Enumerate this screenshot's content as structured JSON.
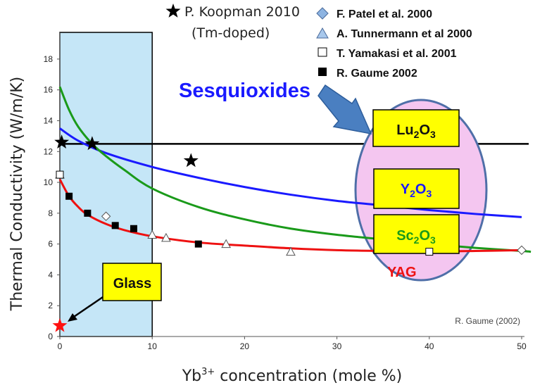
{
  "chart_data": {
    "type": "line",
    "xlabel_base": "Yb",
    "xlabel_sup": "3+",
    "xlabel_rest": " concentration (mole %)",
    "ylabel": "Thermal Conductivity (W/m/K)",
    "xlim": [
      0,
      50
    ],
    "ylim": [
      0,
      19
    ],
    "xticks": [
      0,
      10,
      20,
      30,
      40,
      50
    ],
    "yticks": [
      0,
      2,
      4,
      6,
      8,
      10,
      12,
      14,
      16,
      18
    ],
    "highlight_region": {
      "x_from": 0,
      "x_to": 10,
      "color": "#c5e6f7"
    },
    "horizontal_line": {
      "y": 12.5,
      "color": "#000000"
    },
    "curves": [
      {
        "color": "#1a1aff",
        "label": "",
        "points": [
          [
            0,
            13.5
          ],
          [
            2,
            12.7
          ],
          [
            5,
            11.9
          ],
          [
            10,
            11.0
          ],
          [
            15,
            10.3
          ],
          [
            20,
            9.7
          ],
          [
            25,
            9.2
          ],
          [
            30,
            8.8
          ],
          [
            35,
            8.5
          ],
          [
            40,
            8.2
          ],
          [
            45,
            7.95
          ],
          [
            50,
            7.75
          ]
        ]
      },
      {
        "color": "#1a9a1a",
        "label": "",
        "points": [
          [
            0,
            16.2
          ],
          [
            1,
            14.7
          ],
          [
            2,
            13.6
          ],
          [
            3.5,
            12.5
          ],
          [
            5,
            11.7
          ],
          [
            7,
            10.8
          ],
          [
            10,
            9.6
          ],
          [
            15,
            8.4
          ],
          [
            20,
            7.6
          ],
          [
            25,
            7.0
          ],
          [
            30,
            6.6
          ],
          [
            35,
            6.3
          ],
          [
            40,
            6.0
          ],
          [
            45,
            5.75
          ],
          [
            50,
            5.55
          ],
          [
            51,
            5.5
          ]
        ]
      },
      {
        "color": "#ee1111",
        "label": "YAG",
        "points": [
          [
            0,
            10.2
          ],
          [
            1,
            9.1
          ],
          [
            2,
            8.4
          ],
          [
            3,
            7.9
          ],
          [
            5,
            7.3
          ],
          [
            7,
            6.9
          ],
          [
            10,
            6.5
          ],
          [
            15,
            6.1
          ],
          [
            20,
            5.9
          ],
          [
            25,
            5.72
          ],
          [
            30,
            5.6
          ],
          [
            35,
            5.55
          ],
          [
            40,
            5.52
          ],
          [
            45,
            5.55
          ],
          [
            50,
            5.6
          ]
        ]
      }
    ],
    "series": [
      {
        "name": "F. Patel et al. 2000",
        "marker": "diamond",
        "color": "#8db4e2",
        "points": [
          [
            5,
            7.8
          ],
          [
            50,
            5.6
          ]
        ]
      },
      {
        "name": "A. Tunnermann et al 2000",
        "marker": "triangle",
        "color": "#ffffff",
        "points": [
          [
            0,
            10.5
          ],
          [
            10,
            6.6
          ],
          [
            11.5,
            6.4
          ],
          [
            18,
            6.0
          ],
          [
            25,
            5.5
          ]
        ]
      },
      {
        "name": "T. Yamakasi et al. 2001",
        "marker": "square-open",
        "color": "#ffffff",
        "points": [
          [
            0,
            10.5
          ],
          [
            40,
            5.5
          ]
        ]
      },
      {
        "name": "R. Gaume 2002",
        "marker": "square-filled",
        "color": "#000000",
        "points": [
          [
            1,
            9.1
          ],
          [
            3,
            8.0
          ],
          [
            6,
            7.2
          ],
          [
            8,
            7.0
          ],
          [
            15,
            6.0
          ]
        ]
      },
      {
        "name": "P. Koopman 2010",
        "marker": "star",
        "color": "#000000",
        "points": [
          [
            0.2,
            12.6
          ],
          [
            3.5,
            12.5
          ],
          [
            14.2,
            11.4
          ]
        ]
      },
      {
        "name": "",
        "marker": "star-red",
        "color": "#ff1111",
        "points": [
          [
            0,
            0.7
          ]
        ]
      }
    ],
    "legend_sub": "(Tm-doped)",
    "annotations": {
      "sesquioxides": "Sesquioxides",
      "glass": "Glass",
      "yag": "YAG",
      "credit": "R. Gaume (2002)",
      "materials": [
        {
          "base": "Lu",
          "sub1": "2",
          "mid": "O",
          "sub2": "3",
          "color": "#111111"
        },
        {
          "base": "Y",
          "sub1": "2",
          "mid": "O",
          "sub2": "3",
          "color": "#1a1aff"
        },
        {
          "base": "Sc",
          "sub1": "2",
          "mid": "O",
          "sub2": "3",
          "color": "#1a9a1a"
        }
      ]
    },
    "colors": {
      "box_fill": "#ffff00",
      "ellipse_fill": "#f4c6f0",
      "ellipse_stroke": "#4f6fa8",
      "arrow_fill": "#4a7fc1"
    }
  }
}
